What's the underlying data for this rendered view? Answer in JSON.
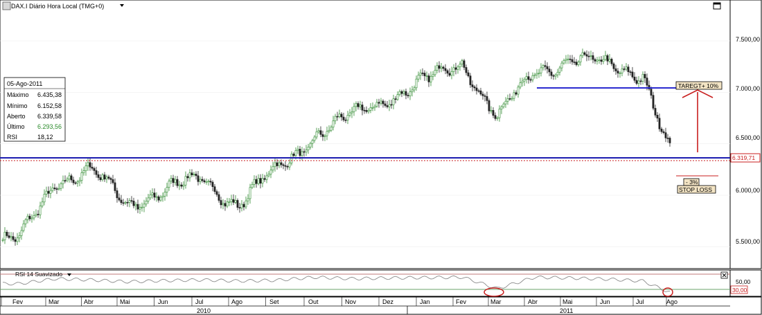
{
  "header": {
    "title": "DAX.I Diário Hora Local (TMG+0)",
    "dropdown_icon": "caret-down-icon",
    "app_icon": "chart-window-icon",
    "maximize_icon": "maximize-icon"
  },
  "info_panel": {
    "date": "05-Ago-2011",
    "rows": [
      {
        "label": "Máximo",
        "value": "6.435,38"
      },
      {
        "label": "Mínimo",
        "value": "6.152,58"
      },
      {
        "label": "Aberto",
        "value": "6.339,58"
      },
      {
        "label": "Último",
        "value": "6.293,56"
      },
      {
        "label": "RSI",
        "value": "18,12"
      }
    ]
  },
  "price_tick_labels": [
    "7.500,00",
    "7.000,00",
    "6.500,00",
    "6.000,00",
    "5.500,00"
  ],
  "rsi_panel": {
    "title": "RSI 14 Suavizado",
    "tick_labels": [
      "50,00",
      "30,00"
    ],
    "close_icon": "close-icon"
  },
  "annotations": {
    "target_label": "TAREGT+ 10%",
    "stop_pct": "- 3%",
    "stop_label": "STOP LOSS",
    "current_price": "6.319,71"
  },
  "month_labels": [
    "Fev",
    "Mar",
    "Abr",
    "Mai",
    "Jun",
    "Jul",
    "Ago",
    "Set",
    "Out",
    "Nov",
    "Dez",
    "Jan",
    "Fev",
    "Mar",
    "Abr",
    "Mai",
    "Jun",
    "Jul",
    "Ago"
  ],
  "year_labels": [
    "2010",
    "2011"
  ],
  "colors": {
    "support": "#1b1bb0",
    "target": "#2a2ad0",
    "arrow": "#c81e1e",
    "candle_up": "#2f8a2f",
    "candle_down": "#222222",
    "rsi_line": "#8c8c8c",
    "rsi_upper": "#c07878",
    "rsi_lower": "#6aa36a",
    "last_value": "#2a8a2a"
  },
  "chart_data": {
    "type": "candlestick",
    "symbol": "DAX.I",
    "ylim": [
      5350,
      7650
    ],
    "support_level": 6319.71,
    "target_level": 7000,
    "rsi_ylim": [
      15,
      80
    ],
    "rsi_levels": [
      30,
      70
    ],
    "series": [
      {
        "date": "2010-02",
        "close": 5550
      },
      {
        "date": "2010-03",
        "close": 6150
      },
      {
        "date": "2010-04",
        "close": 6230
      },
      {
        "date": "2010-05",
        "close": 5920
      },
      {
        "date": "2010-06",
        "close": 6050
      },
      {
        "date": "2010-07",
        "close": 6150
      },
      {
        "date": "2010-08",
        "close": 5920
      },
      {
        "date": "2010-09",
        "close": 6230
      },
      {
        "date": "2010-10",
        "close": 6600
      },
      {
        "date": "2010-11",
        "close": 6750
      },
      {
        "date": "2010-12",
        "close": 6970
      },
      {
        "date": "2011-01",
        "close": 7100
      },
      {
        "date": "2011-02",
        "close": 7300
      },
      {
        "date": "2011-03",
        "close": 6750
      },
      {
        "date": "2011-04",
        "close": 7200
      },
      {
        "date": "2011-05",
        "close": 7320
      },
      {
        "date": "2011-06",
        "close": 7250
      },
      {
        "date": "2011-07",
        "close": 7200
      },
      {
        "date": "2011-08",
        "close": 6290
      }
    ],
    "rsi_series": [
      {
        "date": "2010-02",
        "value": 45
      },
      {
        "date": "2010-03",
        "value": 58
      },
      {
        "date": "2010-04",
        "value": 55
      },
      {
        "date": "2010-05",
        "value": 50
      },
      {
        "date": "2010-06",
        "value": 53
      },
      {
        "date": "2010-07",
        "value": 55
      },
      {
        "date": "2010-08",
        "value": 52
      },
      {
        "date": "2010-09",
        "value": 54
      },
      {
        "date": "2010-10",
        "value": 62
      },
      {
        "date": "2010-11",
        "value": 58
      },
      {
        "date": "2010-12",
        "value": 60
      },
      {
        "date": "2011-01",
        "value": 61
      },
      {
        "date": "2011-02",
        "value": 62
      },
      {
        "date": "2011-03",
        "value": 32
      },
      {
        "date": "2011-04",
        "value": 62
      },
      {
        "date": "2011-05",
        "value": 60
      },
      {
        "date": "2011-06",
        "value": 57
      },
      {
        "date": "2011-07",
        "value": 52
      },
      {
        "date": "2011-08",
        "value": 18
      }
    ]
  }
}
